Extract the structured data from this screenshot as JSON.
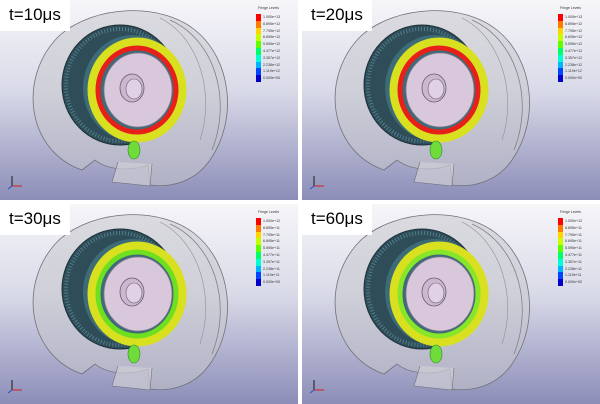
{
  "panels": [
    {
      "time_label": "t=10μs",
      "ring_color": "#e8201a"
    },
    {
      "time_label": "t=20μs",
      "ring_color": "#e8201a"
    },
    {
      "time_label": "t=30μs",
      "ring_color": "#6fe020"
    },
    {
      "time_label": "t=60μs",
      "ring_color": "#88e62a"
    }
  ],
  "legend": {
    "title": "Fringe Levels",
    "colors": [
      "#ff0000",
      "#ff7a00",
      "#ffd400",
      "#c8ff00",
      "#5fff00",
      "#00ff6a",
      "#00ffd4",
      "#00b4ff",
      "#0046ff",
      "#0000c8"
    ],
    "panel_values": [
      [
        "1.000e+13",
        "8.895e+12",
        "7.795e+12",
        "6.695e+12",
        "5.595e+12",
        "4.477e+12",
        "3.357e+12",
        "2.238e+12",
        "1.119e+12",
        "0.000e+00"
      ],
      [
        "1.000e+13",
        "8.895e+12",
        "7.795e+12",
        "6.695e+12",
        "5.595e+12",
        "4.477e+12",
        "3.357e+12",
        "2.238e+12",
        "1.119e+12",
        "0.000e+00"
      ],
      [
        "1.000e+12",
        "8.895e+11",
        "7.795e+11",
        "6.695e+11",
        "5.595e+11",
        "4.477e+11",
        "3.357e+11",
        "2.238e+11",
        "1.119e+11",
        "0.000e+00"
      ],
      [
        "1.000e+12",
        "8.895e+11",
        "7.795e+11",
        "6.695e+11",
        "5.595e+11",
        "4.477e+11",
        "3.357e+11",
        "2.238e+11",
        "1.119e+11",
        "0.000e+00"
      ]
    ]
  },
  "icons": {
    "axis_triad": "xyz-axis-triad-icon"
  }
}
